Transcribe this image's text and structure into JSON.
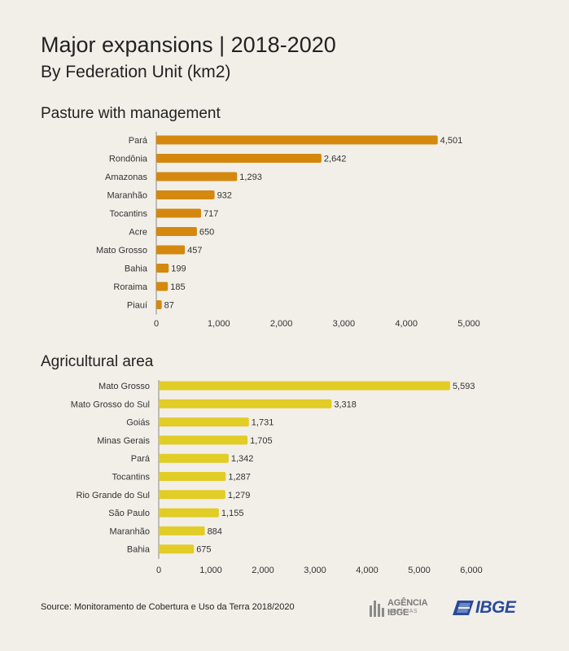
{
  "title": "Major expansions | 2018-2020",
  "subtitle": "By Federation Unit (km2)",
  "footer": {
    "source": "Source:  Monitoramento de Cobertura e Uso da Terra 2018/2020",
    "agencia_logo_top": "AGÊNCIA IBGE",
    "agencia_logo_bottom": "NOTÍCIAS",
    "ibge_logo": "IBGE"
  },
  "colors": {
    "pasture": "#d4880e",
    "agricultural": "#e2cc26",
    "axis": "#888888",
    "background": "#f2efe9"
  },
  "chart_data": [
    {
      "type": "bar",
      "orientation": "horizontal",
      "title": "Pasture with management",
      "categories": [
        "Pará",
        "Rondônia",
        "Amazonas",
        "Maranhão",
        "Tocantins",
        "Acre",
        "Mato Grosso",
        "Bahia",
        "Roraima",
        "Piauí"
      ],
      "values": [
        4501,
        2642,
        1293,
        932,
        717,
        650,
        457,
        199,
        185,
        87
      ],
      "value_labels": [
        "4,501",
        "2,642",
        "1,293",
        "932",
        "717",
        "650",
        "457",
        "199",
        "185",
        "87"
      ],
      "xlim": [
        0,
        5000
      ],
      "xticks": [
        0,
        1000,
        2000,
        3000,
        4000,
        5000
      ],
      "xtick_labels": [
        "0",
        "1,000",
        "2,000",
        "3,000",
        "4,000",
        "5,000"
      ],
      "grid": false
    },
    {
      "type": "bar",
      "orientation": "horizontal",
      "title": "Agricultural area",
      "categories": [
        "Mato Grosso",
        "Mato Grosso do Sul",
        "Goiás",
        "Minas Gerais",
        "Pará",
        "Tocantins",
        "Rio Grande do Sul",
        "São Paulo",
        "Maranhão",
        "Bahia"
      ],
      "values": [
        5593,
        3318,
        1731,
        1705,
        1342,
        1287,
        1279,
        1155,
        884,
        675
      ],
      "value_labels": [
        "5,593",
        "3,318",
        "1,731",
        "1,705",
        "1,342",
        "1,287",
        "1,279",
        "1,155",
        "884",
        "675"
      ],
      "xlim": [
        0,
        6000
      ],
      "xticks": [
        0,
        1000,
        2000,
        3000,
        4000,
        5000,
        6000
      ],
      "xtick_labels": [
        "0",
        "1,000",
        "2,000",
        "3,000",
        "4,000",
        "5,000",
        "6,000"
      ],
      "grid": false
    }
  ]
}
